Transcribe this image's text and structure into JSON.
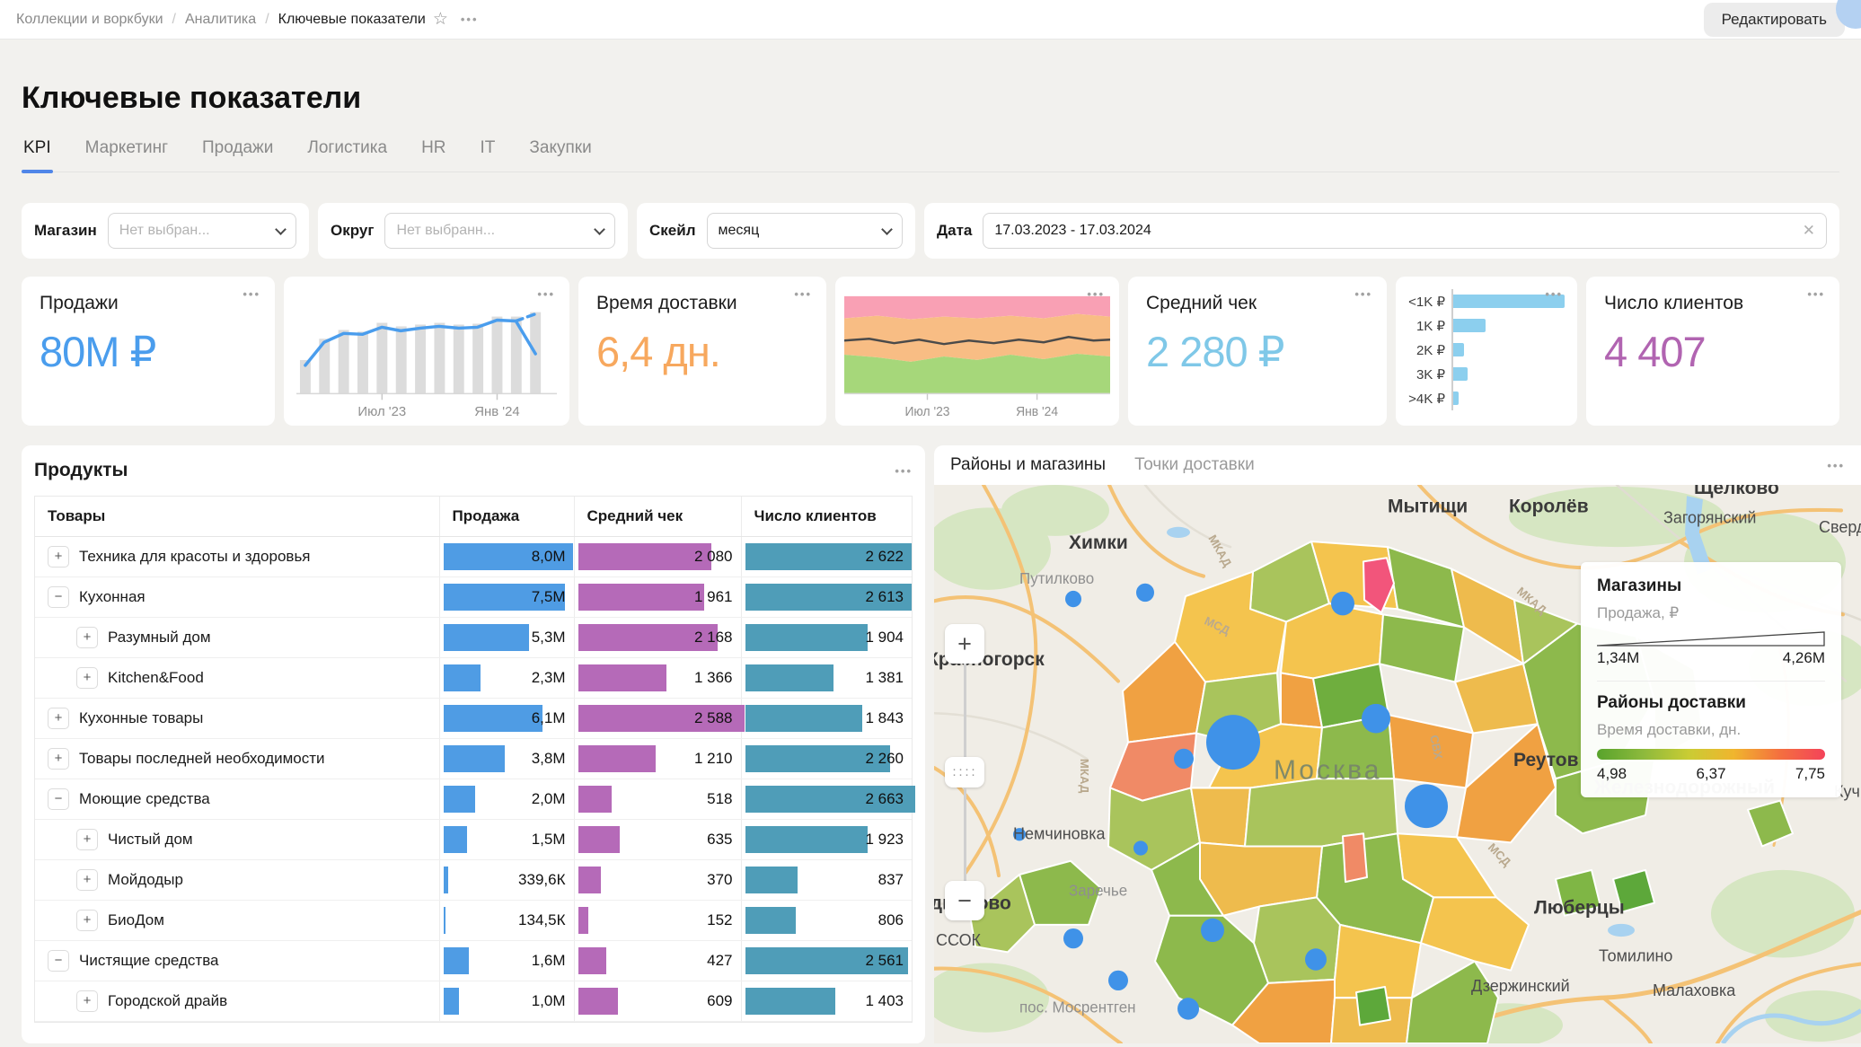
{
  "icons": {
    "more": "•••",
    "star": "☆",
    "clear": "✕"
  },
  "header": {
    "breadcrumb": {
      "items": [
        "Коллекции и воркбуки",
        "Аналитика",
        "Ключевые показатели"
      ],
      "separator": "/"
    },
    "edit_button": "Редактировать"
  },
  "page": {
    "title": "Ключевые показатели"
  },
  "tabs": {
    "items": [
      "KPI",
      "Маркетинг",
      "Продажи",
      "Логистика",
      "HR",
      "IT",
      "Закупки"
    ],
    "active": "KPI"
  },
  "filters": {
    "store": {
      "label": "Магазин",
      "placeholder": "Нет выбран..."
    },
    "okrug": {
      "label": "Округ",
      "placeholder": "Нет выбранн..."
    },
    "scale": {
      "label": "Скейл",
      "value": "месяц"
    },
    "date": {
      "label": "Дата",
      "value": "17.03.2023 - 17.03.2024"
    }
  },
  "kpi": {
    "sales": {
      "title": "Продажи",
      "value": "80М ₽",
      "color": "#4a9ded"
    },
    "delivery": {
      "title": "Время доставки",
      "value": "6,4 дн.",
      "color": "#f7a85e"
    },
    "avg_check": {
      "title": "Средний чек",
      "value": "2 280 ₽",
      "color": "#7fc8e8"
    },
    "clients": {
      "title": "Число клиентов",
      "value": "4 407",
      "color": "#b164b1"
    }
  },
  "chart_data": [
    {
      "id": "sales-trend-sparkline",
      "type": "bar",
      "overlay": "line",
      "x_ticks": [
        "Июл '23",
        "Янв '24"
      ],
      "bar_values_norm_0_100": [
        38,
        62,
        72,
        70,
        80,
        76,
        78,
        80,
        78,
        79,
        87,
        87,
        92
      ],
      "line_values_norm_0_100": [
        32,
        58,
        68,
        67,
        75,
        71,
        74,
        76,
        74,
        75,
        83,
        82,
        45
      ],
      "forecast_dashed_tail_norm": [
        82,
        90
      ],
      "bar_color": "#d9d9d9",
      "line_color": "#4a9ded",
      "grid": false,
      "legend": "none"
    },
    {
      "id": "delivery-time-structure",
      "type": "area",
      "x_ticks": [
        "Июл '23",
        "Янв '24"
      ],
      "stacked_bands_top_to_bottom": [
        {
          "name": "slow",
          "color": "#f9a0b4",
          "share_pct": 21
        },
        {
          "name": "mid",
          "color": "#f8bd84",
          "share_pct": 38
        },
        {
          "name": "fast",
          "color": "#a6d77a",
          "share_pct": 41
        }
      ],
      "midline_color": "#4a4a4a",
      "grid": false,
      "legend": "none"
    },
    {
      "id": "avg-check-distribution",
      "type": "bar",
      "orientation": "horizontal",
      "categories": [
        "<1K ₽",
        "1K ₽",
        "2K ₽",
        "3K ₽",
        ">4K ₽"
      ],
      "values_norm_0_100": [
        100,
        29,
        10,
        13,
        5
      ],
      "bar_color": "#8ccfee",
      "grid": false,
      "legend": "none"
    }
  ],
  "products": {
    "title": "Продукты",
    "columns": [
      "Товары",
      "Продажа",
      "Средний чек",
      "Число клиентов"
    ],
    "rows": [
      {
        "level": 0,
        "expander": "+",
        "name": "Техника для красоты и здоровья",
        "sales": "8,0М",
        "sales_pct": 97,
        "check": "2 080",
        "check_pct": 80,
        "clients": "2 622",
        "clients_pct": 98
      },
      {
        "level": 0,
        "expander": "−",
        "name": "Кухонная",
        "sales": "7,5М",
        "sales_pct": 91,
        "check": "1 961",
        "check_pct": 76,
        "clients": "2 613",
        "clients_pct": 98
      },
      {
        "level": 1,
        "expander": "+",
        "name": "Разумный дом",
        "sales": "5,3М",
        "sales_pct": 64,
        "check": "2 168",
        "check_pct": 84,
        "clients": "1 904",
        "clients_pct": 72
      },
      {
        "level": 1,
        "expander": "+",
        "name": "Kitchen&Food",
        "sales": "2,3М",
        "sales_pct": 28,
        "check": "1 366",
        "check_pct": 53,
        "clients": "1 381",
        "clients_pct": 52
      },
      {
        "level": 0,
        "expander": "+",
        "name": "Кухонные товары",
        "sales": "6,1М",
        "sales_pct": 74,
        "check": "2 588",
        "check_pct": 100,
        "clients": "1 843",
        "clients_pct": 69
      },
      {
        "level": 0,
        "expander": "+",
        "name": "Товары последней необходимости",
        "sales": "3,8М",
        "sales_pct": 46,
        "check": "1 210",
        "check_pct": 47,
        "clients": "2 260",
        "clients_pct": 85
      },
      {
        "level": 0,
        "expander": "−",
        "name": "Моющие средства",
        "sales": "2,0М",
        "sales_pct": 24,
        "check": "518",
        "check_pct": 20,
        "clients": "2 663",
        "clients_pct": 100
      },
      {
        "level": 1,
        "expander": "+",
        "name": "Чистый дом",
        "sales": "1,5М",
        "sales_pct": 18,
        "check": "635",
        "check_pct": 25,
        "clients": "1 923",
        "clients_pct": 72
      },
      {
        "level": 1,
        "expander": "+",
        "name": "Мойдодыр",
        "sales": "339,6К",
        "sales_pct": 4,
        "check": "370",
        "check_pct": 14,
        "clients": "837",
        "clients_pct": 31
      },
      {
        "level": 1,
        "expander": "+",
        "name": "БиоДом",
        "sales": "134,5К",
        "sales_pct": 2,
        "check": "152",
        "check_pct": 6,
        "clients": "806",
        "clients_pct": 30
      },
      {
        "level": 0,
        "expander": "−",
        "name": "Чистящие средства",
        "sales": "1,6М",
        "sales_pct": 19,
        "check": "427",
        "check_pct": 17,
        "clients": "2 561",
        "clients_pct": 96
      },
      {
        "level": 1,
        "expander": "+",
        "name": "Городской драйв",
        "sales": "1,0М",
        "sales_pct": 12,
        "check": "609",
        "check_pct": 24,
        "clients": "1 403",
        "clients_pct": 53
      }
    ]
  },
  "map": {
    "tabs": {
      "districts": "Районы и магазины",
      "points": "Точки доставки"
    },
    "controls": {
      "zoom_in": "+",
      "zoom_out": "−",
      "handle": "····"
    },
    "legend": {
      "stores_title": "Магазины",
      "stores_metric": "Продажа, ₽",
      "stores_min": "1,34М",
      "stores_max": "4,26М",
      "districts_title": "Районы доставки",
      "districts_metric": "Время доставки, дн.",
      "scale_min": "4,98",
      "scale_mid": "6,37",
      "scale_max": "7,75"
    },
    "labels": [
      {
        "text": "Щёлково"
      },
      {
        "text": "Загорянский"
      },
      {
        "text": "Мытищи"
      },
      {
        "text": "Королёв"
      },
      {
        "text": "Свердл"
      },
      {
        "text": "Химки"
      },
      {
        "text": "Путилково"
      },
      {
        "text": "Красногорск"
      },
      {
        "text": "Немчиновка"
      },
      {
        "text": "Заречье"
      },
      {
        "text": "Одинцово"
      },
      {
        "text": "ССОК"
      },
      {
        "text": "пос. Мосрентген"
      },
      {
        "text": "Люберцы"
      },
      {
        "text": "Дзержинский"
      },
      {
        "text": "Томилино"
      },
      {
        "text": "Малаховка"
      },
      {
        "text": "Реутов"
      },
      {
        "text": "Железнодорожный"
      },
      {
        "text": "Москва"
      },
      {
        "text": "МКАД"
      },
      {
        "text": "МКАД"
      },
      {
        "text": "МКАД"
      },
      {
        "text": "МСД"
      },
      {
        "text": "МСД"
      },
      {
        "text": "СВХ"
      },
      {
        "text": "Кучино"
      }
    ]
  }
}
